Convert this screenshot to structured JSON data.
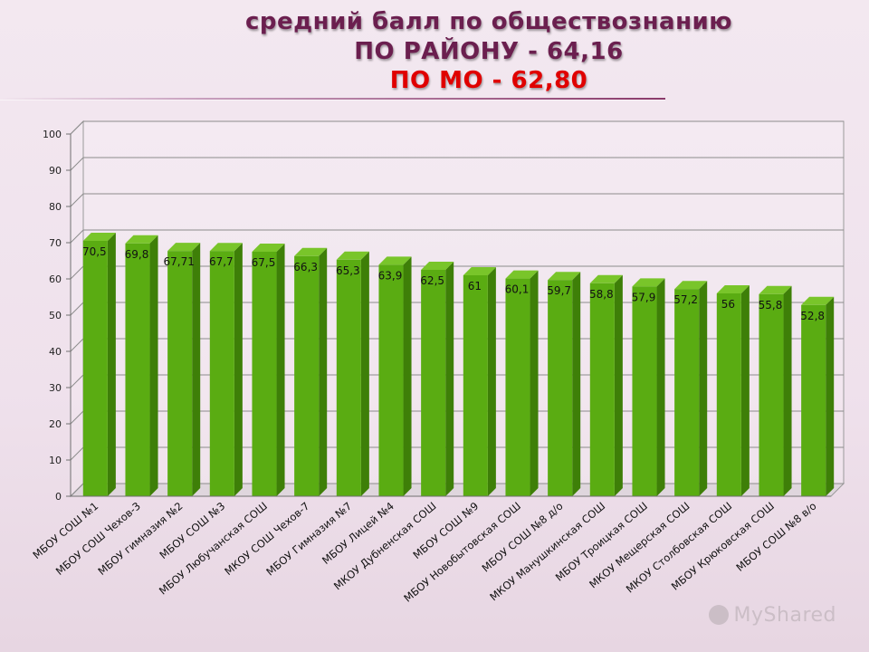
{
  "title": {
    "line1": "средний балл по обществознанию",
    "line2": "ПО РАЙОНУ - 64,16",
    "line3": "ПО МО - 62,80"
  },
  "watermark": "MyShared",
  "colors": {
    "bar_front": "#5aac12",
    "bar_side": "#3e7f08",
    "bar_top": "#79c52a",
    "title_main": "#6b1f4f",
    "title_accent": "#e00000"
  },
  "chart_data": {
    "type": "bar",
    "categories": [
      "МБОУ СОШ №1",
      "МБОУ СОШ Чехов-3",
      "МБОУ гимназия №2",
      "МБОУ СОШ №3",
      "МБОУ Любучанская СОШ",
      "МКОУ СОШ Чехов-7",
      "МБОУ Гимназия №7",
      "МБОУ Лицей №4",
      "МКОУ Дубненская СОШ",
      "МБОУ СОШ №9",
      "МБОУ Новобытовская СОШ",
      "МБОУ СОШ №8 д/о",
      "МКОУ Манушкинская СОШ",
      "МБОУ Троицкая СОШ",
      "МКОУ Мещерская СОШ",
      "МКОУ Столбовская СОШ",
      "МБОУ Крюковская СОШ",
      "МБОУ СОШ №8 в/о"
    ],
    "values": [
      70.5,
      69.8,
      67.71,
      67.7,
      67.5,
      66.3,
      65.3,
      63.9,
      62.5,
      61,
      60.1,
      59.7,
      58.8,
      57.9,
      57.2,
      56,
      55.8,
      52.8
    ],
    "labels": [
      "70,5",
      "69,8",
      "67,71",
      "67,7",
      "67,5",
      "66,3",
      "65,3",
      "63,9",
      "62,5",
      "61",
      "60,1",
      "59,7",
      "58,8",
      "57,9",
      "57,2",
      "56",
      "55,8",
      "52,8"
    ],
    "yticks": [
      "0",
      "10",
      "20",
      "30",
      "40",
      "50",
      "60",
      "70",
      "80",
      "90",
      "100"
    ],
    "ylim": [
      0,
      100
    ],
    "grid": true,
    "legend": "none",
    "style": "3d-column"
  }
}
